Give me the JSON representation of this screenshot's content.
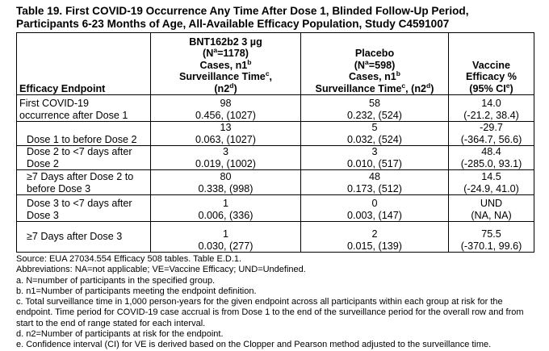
{
  "title_line1": "Table 19. First COVID-19 Occurrence Any Time After Dose 1, Blinded Follow-Up Period,",
  "title_line2": "Participants 6-23 Months of Age, All-Available Efficacy Population, Study C4591007",
  "headers": {
    "endpoint": "Efficacy Endpoint",
    "bnt_l1": "BNT162b2 3 µg",
    "bnt_l2a": "(N",
    "bnt_l2sup": "a",
    "bnt_l2b": "=1178)",
    "bnt_l3a": "Cases, n1",
    "bnt_l3sup": "b",
    "bnt_l4a": "Surveillance Time",
    "bnt_l4sup": "c",
    "bnt_l4b": ",",
    "bnt_l5a": "(n2",
    "bnt_l5sup": "d",
    "bnt_l5b": ")",
    "pla_l1": "Placebo",
    "pla_l2a": "(N",
    "pla_l2sup": "a",
    "pla_l2b": "=598)",
    "pla_l3a": "Cases, n1",
    "pla_l3sup": "b",
    "pla_l4a": "Surveillance Time",
    "pla_l4sup": "c",
    "pla_l4b": ", (n2",
    "pla_l4sup2": "d",
    "pla_l4c": ")",
    "ve_l1": "Vaccine",
    "ve_l2": "Efficacy %",
    "ve_l3a": "(95% CI",
    "ve_l3sup": "e",
    "ve_l3b": ")"
  },
  "rows": [
    {
      "ep1": "First COVID-19",
      "ep2": "occurrence after Dose 1",
      "bnt1": "98",
      "bnt2": "0.456, (1027)",
      "pla1": "58",
      "pla2": "0.232, (524)",
      "ve1": "14.0",
      "ve2": "(-21.2, 38.4)"
    },
    {
      "ep1": "",
      "ep2": "Dose 1 to before Dose 2",
      "bnt1": "13",
      "bnt2": "0.063, (1027)",
      "pla1": "5",
      "pla2": "0.032, (524)",
      "ve1": "-29.7",
      "ve2": "(-364.7, 56.6)"
    },
    {
      "ep1": "Dose 2 to <7 days after",
      "ep2": "Dose 2",
      "bnt1": "3",
      "bnt2": "0.019, (1002)",
      "pla1": "3",
      "pla2": "0.010, (517)",
      "ve1": "48.4",
      "ve2": "(-285.0, 93.1)"
    },
    {
      "ep1": "≥7 Days after Dose 2 to",
      "ep2": "before Dose 3",
      "bnt1": "80",
      "bnt2": "0.338, (998)",
      "pla1": "48",
      "pla2": "0.173, (512)",
      "ve1": "14.5",
      "ve2": "(-24.9, 41.0)"
    },
    {
      "ep1": "Dose 3 to <7 days after",
      "ep2": "Dose 3",
      "bnt1": "1",
      "bnt2": "0.006, (336)",
      "pla1": "0",
      "pla2": "0.003, (147)",
      "ve1": "UND",
      "ve2": "(NA, NA)"
    },
    {
      "ep1": "",
      "ep2": "≥7 Days after Dose 3",
      "bnt1": "1",
      "bnt2": "0.030, (277)",
      "pla1": "2",
      "pla2": "0.015, (139)",
      "ve1": "75.5",
      "ve2": "(-370.1, 99.6)"
    }
  ],
  "notes": [
    "Source: EUA 27034.554 Efficacy 508 tables. Table E.D.1.",
    "Abbreviations: NA=not applicable; VE=Vaccine Efficacy; UND=Undefined.",
    "a. N=number of participants in the specified group.",
    "b. n1=Number of participants meeting the endpoint definition.",
    "c. Total surveillance time in 1,000 person-years for the given endpoint across all participants within each group at risk for the",
    "endpoint. Time period for COVID-19 case accrual is from Dose 1 to the end of the surveillance period for the overall row and from",
    "start to the end of range stated for each interval.",
    "d. n2=Number of participants at risk for the endpoint.",
    "e. Confidence interval (CI) for VE is derived based on the Clopper and Pearson method adjusted to the surveillance time."
  ]
}
